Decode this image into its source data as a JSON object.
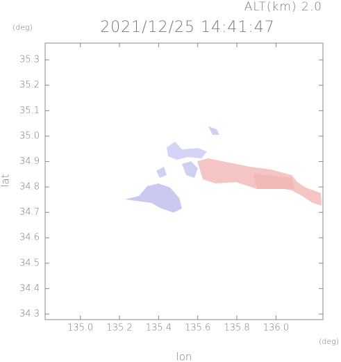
{
  "chart_data": {
    "type": "map",
    "title": "2021/12/25 14:41:47",
    "annotation": "ALT(km) 2.0",
    "y_unit": "(deg)",
    "x_unit": "(deg)",
    "x_label": "lon",
    "y_label": "lat",
    "xlim": [
      134.82,
      136.24
    ],
    "ylim": [
      34.278,
      35.366
    ],
    "xticks": [
      {
        "value": 135,
        "label": "135.0"
      },
      135.2,
      135.4,
      135.6,
      135.8,
      {
        "value": 136,
        "label": "136.0"
      }
    ],
    "yticks": [
      35.3,
      35.2,
      35.1,
      {
        "value": 35,
        "label": "35.0"
      },
      34.9,
      34.8,
      34.7,
      34.6,
      34.5,
      34.4,
      34.3
    ]
  }
}
